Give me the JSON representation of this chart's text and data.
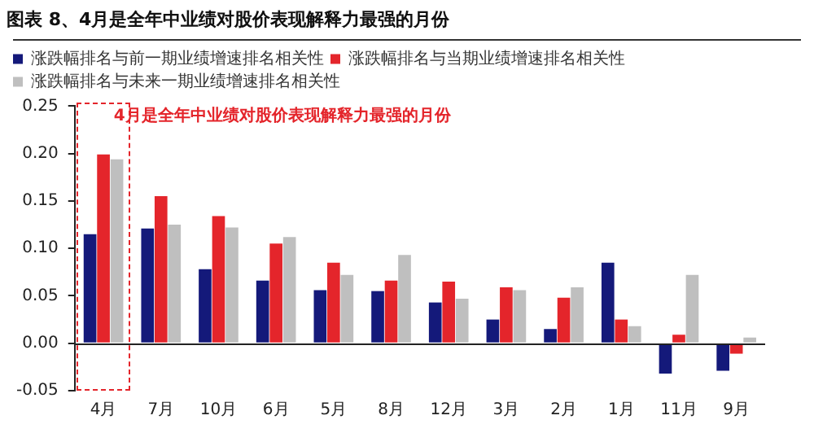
{
  "chart_data": {
    "type": "bar",
    "title": "图表 8、4月是全年中业绩对股价表现解释力最强的月份",
    "categories": [
      "4月",
      "7月",
      "10月",
      "6月",
      "5月",
      "8月",
      "12月",
      "3月",
      "2月",
      "1月",
      "11月",
      "9月"
    ],
    "series": [
      {
        "name": "涨跌幅排名与前一期业绩增速排名相关性",
        "color": "#14197a",
        "values": [
          0.115,
          0.121,
          0.078,
          0.066,
          0.056,
          0.055,
          0.043,
          0.025,
          0.015,
          0.085,
          -0.032,
          -0.029
        ]
      },
      {
        "name": "涨跌幅排名与当期业绩增速排名相关性",
        "color": "#e4252b",
        "values": [
          0.199,
          0.155,
          0.134,
          0.105,
          0.085,
          0.066,
          0.065,
          0.059,
          0.048,
          0.025,
          0.009,
          -0.011
        ]
      },
      {
        "name": "涨跌幅排名与未来一期业绩增速排名相关性",
        "color": "#bfbfbf",
        "values": [
          0.194,
          0.125,
          0.122,
          0.112,
          0.072,
          0.093,
          0.047,
          0.056,
          0.059,
          0.018,
          0.072,
          0.006
        ]
      }
    ],
    "ylim": [
      -0.05,
      0.25
    ],
    "yticks": [
      {
        "value": -0.05,
        "label": "-0.05"
      },
      {
        "value": 0,
        "label": "0.00"
      },
      {
        "value": 0.05,
        "label": "0.05"
      },
      {
        "value": 0.1,
        "label": "0.10"
      },
      {
        "value": 0.15,
        "label": "0.15"
      },
      {
        "value": 0.2,
        "label": "0.20"
      },
      {
        "value": 0.25,
        "label": "0.25"
      }
    ],
    "annotations": [
      "4月是全年中业绩对股价表现解释力最强的月份"
    ],
    "ref_lines": [
      {
        "axis": "y",
        "value": 0,
        "color": "#222222"
      }
    ],
    "legend": "top",
    "grid": false
  }
}
